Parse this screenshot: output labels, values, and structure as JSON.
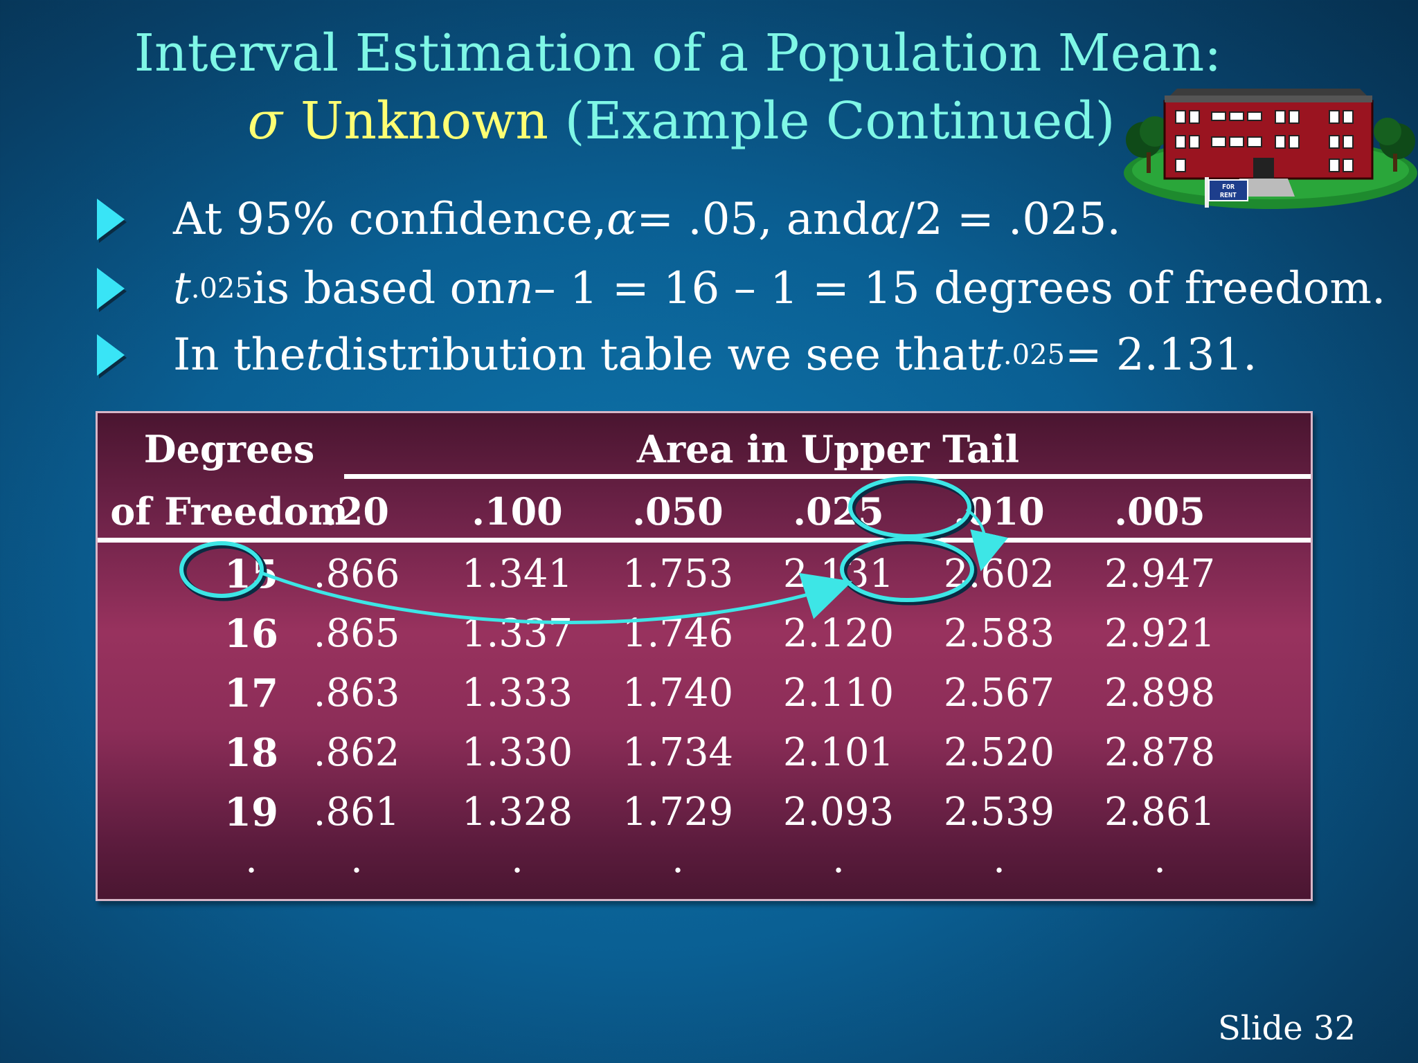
{
  "title": {
    "line1": "Interval Estimation of a Population Mean:",
    "sigma": "σ",
    "unknown": "Unknown",
    "rest": "(Example Continued)"
  },
  "house_sign": "FOR RENT",
  "bullets": [
    {
      "text": "At 95% confidence, ",
      "alpha1": "α",
      "mid": " = .05, and ",
      "alpha2": "α",
      "tail": "/2 = .025."
    },
    {
      "t": "t",
      "sub": ".025",
      "mid": " is based on ",
      "n": "n",
      "tail": " – 1 = 16 – 1 = 15 degrees of freedom."
    },
    {
      "text": "In the ",
      "t1": "t",
      "mid": "  distribution table we see that ",
      "t2": "t",
      "sub": ".025",
      "tail": " = 2.131."
    }
  ],
  "table": {
    "header_df_line1": "Degrees",
    "header_df_line2": "of Freedom",
    "header_area": "Area in Upper Tail",
    "columns": [
      ".20",
      ".100",
      ".050",
      ".025",
      ".010",
      ".005"
    ],
    "rows": [
      {
        "df": "15",
        "values": [
          ".866",
          "1.341",
          "1.753",
          "2.131",
          "2.602",
          "2.947"
        ]
      },
      {
        "df": "16",
        "values": [
          ".865",
          "1.337",
          "1.746",
          "2.120",
          "2.583",
          "2.921"
        ]
      },
      {
        "df": "17",
        "values": [
          ".863",
          "1.333",
          "1.740",
          "2.110",
          "2.567",
          "2.898"
        ]
      },
      {
        "df": "18",
        "values": [
          ".862",
          "1.330",
          "1.734",
          "2.101",
          "2.520",
          "2.878"
        ]
      },
      {
        "df": "19",
        "values": [
          ".861",
          "1.328",
          "1.729",
          "2.093",
          "2.539",
          "2.861"
        ]
      }
    ],
    "ellipsis": "."
  },
  "slide_number": "Slide 32",
  "colors": {
    "title": "#7ff7e6",
    "sigma": "#ffff73",
    "arrow": "#39e4f6",
    "highlight": "#3de6e6"
  }
}
